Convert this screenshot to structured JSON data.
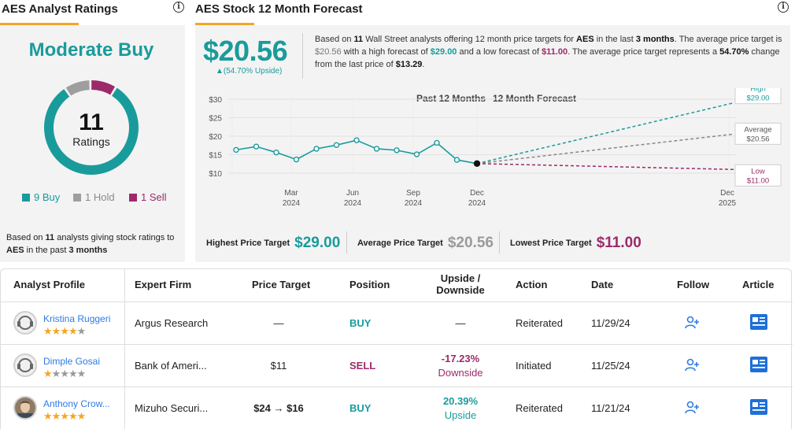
{
  "ratings_panel": {
    "title": "AES Analyst Ratings",
    "consensus": "Moderate Buy",
    "total": "11",
    "total_label": "Ratings",
    "buy_count": 9,
    "hold_count": 1,
    "sell_count": 1,
    "legend_buy": "9 Buy",
    "legend_hold": "1 Hold",
    "legend_sell": "1 Sell",
    "footer_prefix": "Based on ",
    "footer_count": "11",
    "footer_mid": " analysts giving stock ratings to ",
    "footer_ticker": "AES",
    "footer_mid2": " in the past ",
    "footer_period": "3 months",
    "colors": {
      "buy": "#1a9b9b",
      "hold": "#9e9e9e",
      "sell": "#9c2a6b"
    }
  },
  "forecast_panel": {
    "title": "AES Stock 12 Month Forecast",
    "avg_price": "$20.56",
    "upside": "▲(54.70% Upside)",
    "text": {
      "p1": "Based on ",
      "n_analysts": "11",
      "p2": " Wall Street analysts offering 12 month price targets for ",
      "ticker": "AES",
      "p3": " in the last ",
      "period": "3 months",
      "p4": ". The average price target is ",
      "avg": "$20.56",
      "p5": " with a high forecast of ",
      "high": "$29.00",
      "p6": " and a low forecast of ",
      "low": "$11.00",
      "p7": ". The average price target represents a ",
      "pct": "54.70%",
      "p8": " change from the last price of ",
      "last": "$13.29",
      "p9": "."
    },
    "summary": {
      "highest_label": "Highest Price Target",
      "highest_value": "$29.00",
      "average_label": "Average Price Target",
      "average_value": "$20.56",
      "lowest_label": "Lowest Price Target",
      "lowest_value": "$11.00"
    }
  },
  "chart_data": {
    "type": "line",
    "header_left": "Past 12 Months",
    "header_right": "12 Month Forecast",
    "y_ticks": [
      "$30",
      "$25",
      "$20",
      "$15",
      "$10"
    ],
    "ylim": [
      10,
      30
    ],
    "x_ticks": [
      {
        "month": "Mar",
        "year": "2024"
      },
      {
        "month": "Jun",
        "year": "2024"
      },
      {
        "month": "Sep",
        "year": "2024"
      },
      {
        "month": "Dec",
        "year": "2024"
      },
      {
        "month": "Dec",
        "year": "2025"
      }
    ],
    "history": [
      16.3,
      17.2,
      15.6,
      13.7,
      16.6,
      17.6,
      18.9,
      16.6,
      16.2,
      15.1,
      18.2,
      13.6,
      12.6
    ],
    "forecast": {
      "high": 29.0,
      "average": 20.56,
      "low": 11.0,
      "high_label": "High",
      "high_value": "$29.00",
      "average_label": "Average",
      "average_value": "$20.56",
      "low_label": "Low",
      "low_value": "$11.00"
    },
    "colors": {
      "history": "#1a9b9b",
      "high": "#1a9b9b",
      "average": "#888888",
      "low": "#9c2a6b"
    }
  },
  "table": {
    "headers": {
      "profile": "Analyst Profile",
      "firm": "Expert Firm",
      "target": "Price Target",
      "position": "Position",
      "upside_1": "Upside /",
      "upside_2": "Downside",
      "action": "Action",
      "date": "Date",
      "follow": "Follow",
      "article": "Article"
    },
    "rows": [
      {
        "name": "Kristina Ruggeri",
        "stars": 4,
        "firm": "Argus Research",
        "target": "—",
        "position": "BUY",
        "upside_value": "—",
        "upside_label": "",
        "action": "Reiterated",
        "date": "11/29/24"
      },
      {
        "name": "Dimple Gosai",
        "stars": 1,
        "firm": "Bank of Ameri...",
        "target": "$11",
        "position": "SELL",
        "upside_value": "-17.23%",
        "upside_label": "Downside",
        "action": "Initiated",
        "date": "11/25/24"
      },
      {
        "name": "Anthony Crow...",
        "stars": 4.5,
        "firm": "Mizuho Securi...",
        "target": "$24 → $16",
        "position": "BUY",
        "upside_value": "20.39%",
        "upside_label": "Upside",
        "action": "Reiterated",
        "date": "11/21/24"
      }
    ]
  }
}
